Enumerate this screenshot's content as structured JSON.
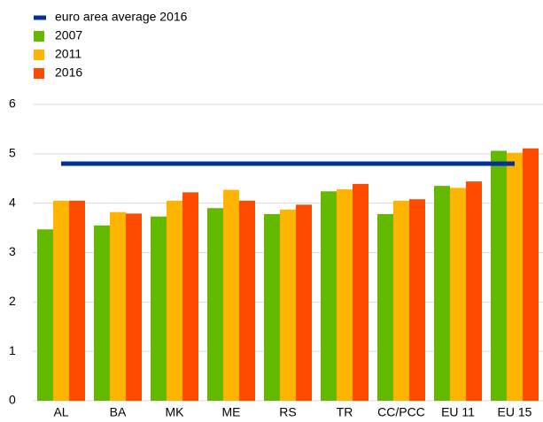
{
  "chart_data": {
    "type": "bar",
    "categories": [
      "AL",
      "BA",
      "MK",
      "ME",
      "RS",
      "TR",
      "CC/PCC",
      "EU 11",
      "EU 15"
    ],
    "series": [
      {
        "name": "euro area average 2016",
        "color": "#003299",
        "kind": "line",
        "values": [
          4.8,
          4.8,
          4.8,
          4.8,
          4.8,
          4.8,
          4.8,
          4.8,
          4.8
        ]
      },
      {
        "name": "2007",
        "color": "#65b800",
        "values": [
          3.47,
          3.55,
          3.73,
          3.9,
          3.78,
          4.24,
          3.78,
          4.35,
          5.06
        ]
      },
      {
        "name": "2011",
        "color": "#ffb400",
        "values": [
          4.05,
          3.82,
          4.05,
          4.27,
          3.87,
          4.28,
          4.05,
          4.31,
          5.02
        ]
      },
      {
        "name": "2016",
        "color": "#ff4b00",
        "values": [
          4.05,
          3.79,
          4.22,
          4.05,
          3.97,
          4.39,
          4.08,
          4.44,
          5.11
        ]
      }
    ],
    "ylim": [
      0,
      6
    ],
    "yticks": [
      0,
      1,
      2,
      3,
      4,
      5,
      6
    ],
    "grid": true
  }
}
